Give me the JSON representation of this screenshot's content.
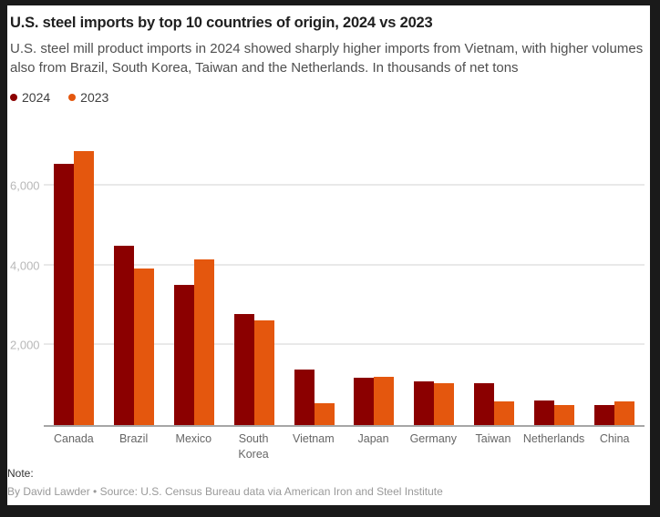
{
  "page": {
    "background_color": "#1A1A1A",
    "card_background_color": "#FFFFFF"
  },
  "header": {
    "title": "U.S. steel imports by top 10 countries of origin, 2024 vs 2023",
    "subtitle": "U.S. steel mill product imports in 2024 showed sharply higher imports from Vietnam, with higher volumes also from Brazil, South Korea, Taiwan and the Netherlands. In thousands of net tons"
  },
  "legend": {
    "items": [
      {
        "label": "2024",
        "color": "#8B0000"
      },
      {
        "label": "2023",
        "color": "#E4570E"
      }
    ]
  },
  "chart_data": {
    "type": "bar",
    "title": "U.S. steel imports by top 10 countries of origin, 2024 vs 2023",
    "unit": "thousands of net tons",
    "categories": [
      "Canada",
      "Brazil",
      "Mexico",
      "South Korea",
      "Vietnam",
      "Japan",
      "Germany",
      "Taiwan",
      "Netherlands",
      "China"
    ],
    "series": [
      {
        "name": "2024",
        "color": "#8B0000",
        "values": [
          6560,
          4500,
          3510,
          2800,
          1390,
          1190,
          1090,
          1040,
          620,
          510
        ]
      },
      {
        "name": "2023",
        "color": "#E4570E",
        "values": [
          6890,
          3940,
          4170,
          2620,
          540,
          1220,
          1050,
          590,
          510,
          600
        ]
      }
    ],
    "yticks": [
      2000,
      4000,
      6000
    ],
    "ytick_labels": [
      "2,000",
      "4,000",
      "6,000"
    ],
    "ylim": [
      0,
      7750
    ],
    "grid": "horizontal",
    "legend_position": "top-left"
  },
  "footer": {
    "note_label": "Note:",
    "byline": "By David Lawder • Source: U.S. Census Bureau data via American Iron and Steel Institute"
  }
}
